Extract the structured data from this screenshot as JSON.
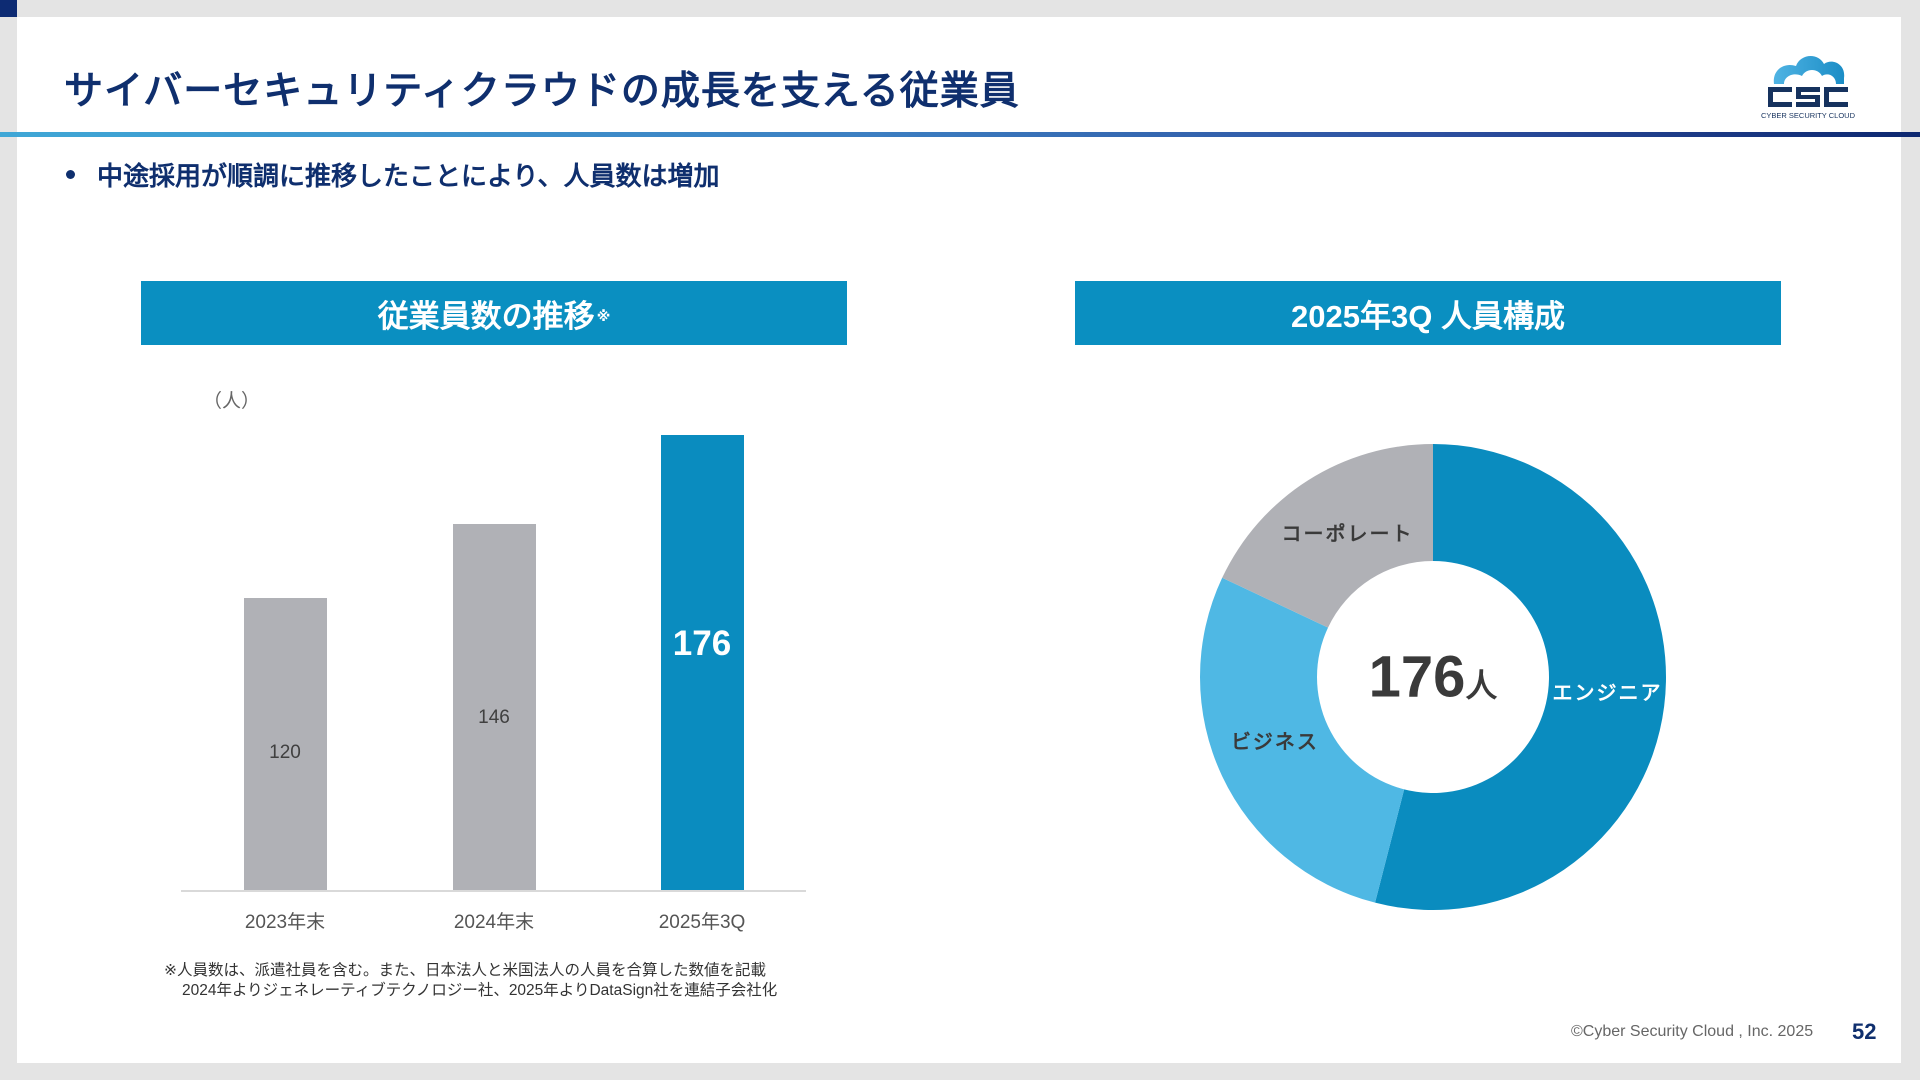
{
  "slide": {
    "title": "サイバーセキュリティクラウドの成長を支える従業員",
    "bullet": "中途採用が順調に推移したことにより、人員数は増加",
    "logo": {
      "wordmark": "CSC",
      "tagline": "CYBER SECURITY CLOUD",
      "icon": "cloud-icon"
    },
    "footer": {
      "copyright": "©Cyber Security Cloud , Inc. 2025",
      "page_number": "52"
    },
    "colors": {
      "navy": "#0f2f6e",
      "header_blue": "#0a8fc1",
      "bar_gray": "#b0b1b6",
      "engineer_blue": "#0a8cbf",
      "business_blue": "#4fb8e4"
    }
  },
  "left_panel": {
    "header": "従業員数の推移",
    "header_mark": "※",
    "footnote": [
      "※人員数は、派遣社員を含む。また、日本法人と米国法人の人員を合算した数値を記載",
      "2024年よりジェネレーティブテクノロジー社、2025年よりDataSign社を連結子会社化"
    ]
  },
  "right_panel": {
    "header": "2025年3Q 人員構成",
    "center_value": "176",
    "center_unit": "人"
  },
  "chart_data": [
    {
      "type": "bar",
      "title": "従業員数の推移※",
      "ylabel": "（人）",
      "xlabel": "",
      "categories": [
        "2023年末",
        "2024年末",
        "2025年3Q"
      ],
      "values": [
        120,
        146,
        176
      ],
      "value_labels": [
        "120",
        "146",
        "176"
      ],
      "highlight_index": 2,
      "ylim": [
        0,
        176
      ],
      "grid": false
    },
    {
      "type": "pie",
      "subtype": "donut",
      "title": "2025年3Q 人員構成",
      "total": 176,
      "total_label": "176人",
      "start": "top",
      "direction": "clockwise",
      "slices": [
        {
          "label": "エンジニア",
          "share_pct": 54,
          "color": "#0a8cbf",
          "label_color": "#ffffff"
        },
        {
          "label": "ビジネス",
          "share_pct": 28,
          "color": "#4fb8e4",
          "label_color": "#3a3a3a"
        },
        {
          "label": "コーポレート",
          "share_pct": 18,
          "color": "#b0b1b6",
          "label_color": "#3a3a3a"
        }
      ]
    }
  ]
}
